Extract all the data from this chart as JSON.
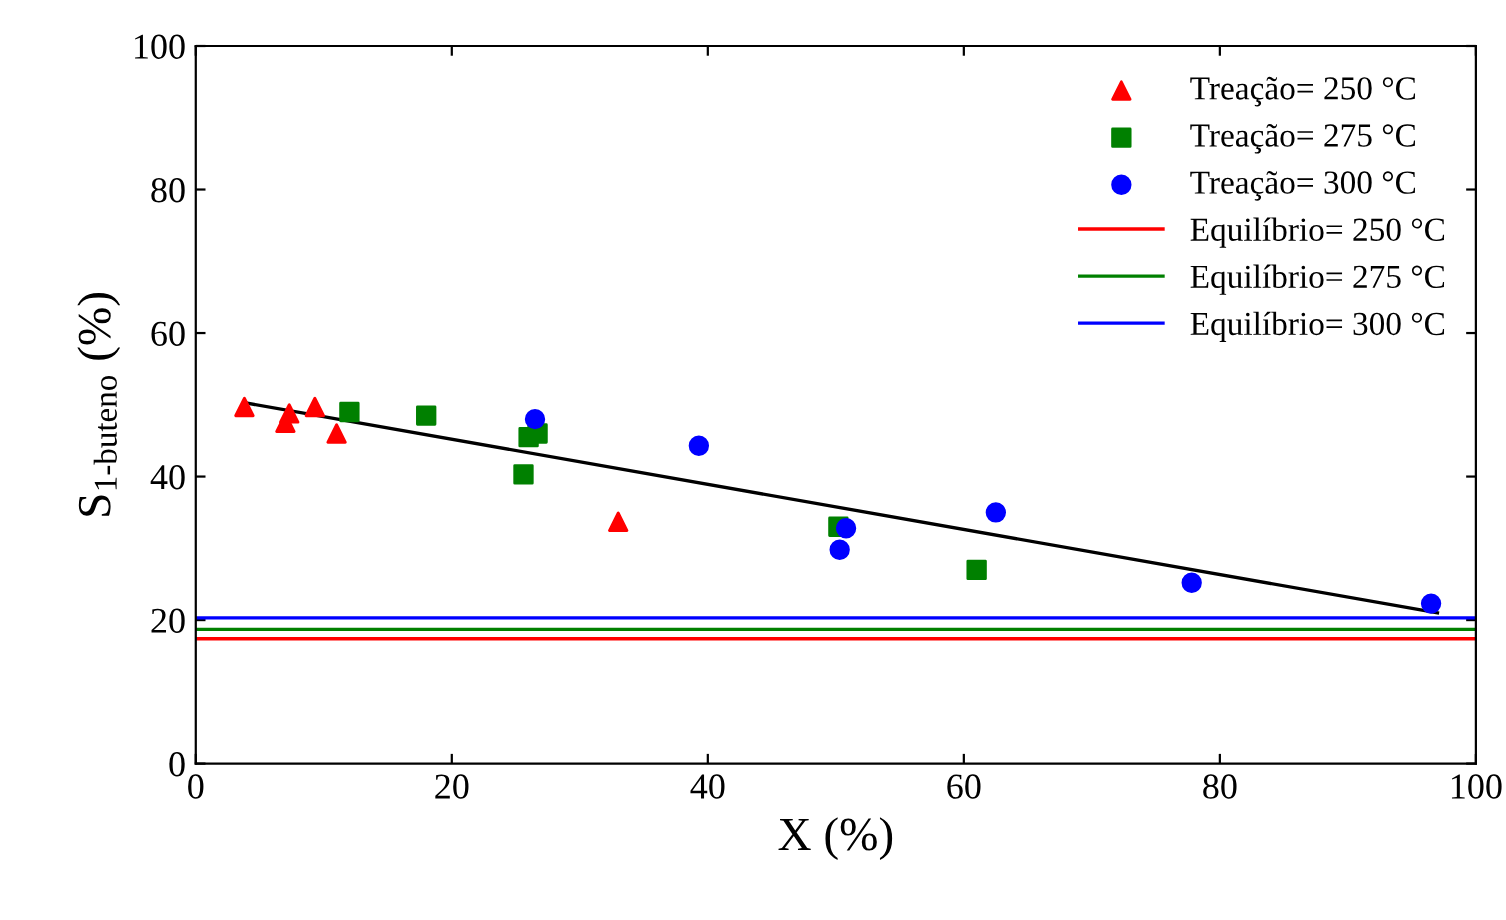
{
  "chart_data": {
    "type": "scatter",
    "xlabel": "X (%)",
    "ylabel": "S$_{1-buteno}$ (%)",
    "xlim": [
      0,
      100
    ],
    "ylim": [
      0,
      100
    ],
    "xticks": [
      0,
      20,
      40,
      60,
      80,
      100
    ],
    "yticks": [
      0,
      20,
      40,
      60,
      80,
      100
    ],
    "grid": false,
    "legend": "top right",
    "series": [
      {
        "name": "Treação= 250 °C",
        "color": "#ff0000",
        "marker": "triangle",
        "x": [
          3.8,
          7,
          7.3,
          9.3,
          11,
          33
        ],
        "values": [
          49.7,
          47.5,
          48.8,
          49.7,
          46,
          33.7
        ]
      },
      {
        "name": "Treação= 275 °C",
        "color": "#008000",
        "marker": "square",
        "x": [
          12,
          18,
          25.6,
          26,
          26.7,
          50.2,
          61
        ],
        "values": [
          49,
          48.5,
          40.3,
          45.5,
          46,
          33,
          27
        ]
      },
      {
        "name": "Treação= 300 °C",
        "color": "#0000ff",
        "marker": "circle",
        "x": [
          26.5,
          39.3,
          50.3,
          50.8,
          62.5,
          77.8,
          96.5
        ],
        "values": [
          48,
          44.3,
          29.8,
          32.8,
          35,
          25.2,
          22.3
        ]
      },
      {
        "type": "line",
        "color": "#000000",
        "x": [
          3.8,
          97
        ],
        "values": [
          50.3,
          21
        ]
      },
      {
        "type": "line",
        "name": "Equilíbrio= 250 °C",
        "color": "#ff0000",
        "x": [
          0,
          100
        ],
        "values": [
          17.4,
          17.4
        ]
      },
      {
        "type": "line",
        "name": "Equilíbrio= 275 °C",
        "color": "#008000",
        "x": [
          0,
          100
        ],
        "values": [
          18.7,
          18.7
        ]
      },
      {
        "type": "line",
        "name": "Equilíbrio= 300 °C",
        "color": "#0000ff",
        "x": [
          0,
          100
        ],
        "values": [
          20.3,
          20.3
        ]
      }
    ]
  }
}
